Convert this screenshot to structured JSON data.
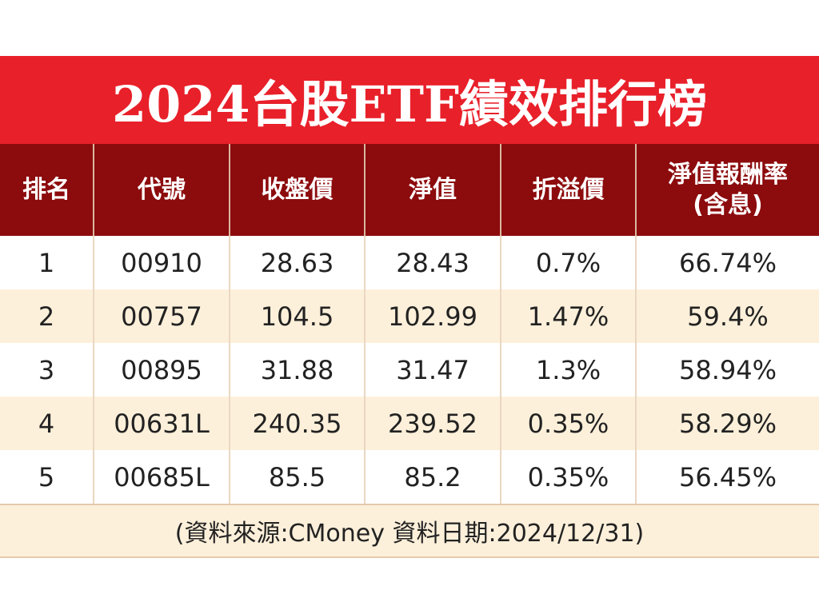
{
  "title": "2024台股ETF績效排行榜",
  "table": {
    "headers": [
      "排名",
      "代號",
      "收盤價",
      "淨值",
      "折溢價",
      "淨值報酬率\n(含息)"
    ],
    "rows": [
      [
        "1",
        "00910",
        "28.63",
        "28.43",
        "0.7%",
        "66.74%"
      ],
      [
        "2",
        "00757",
        "104.5",
        "102.99",
        "1.47%",
        "59.4%"
      ],
      [
        "3",
        "00895",
        "31.88",
        "31.47",
        "1.3%",
        "58.94%"
      ],
      [
        "4",
        "00631L",
        "240.35",
        "239.52",
        "0.35%",
        "58.29%"
      ],
      [
        "5",
        "00685L",
        "85.5",
        "85.2",
        "0.35%",
        "56.45%"
      ]
    ]
  },
  "footer": "(資料來源:CMoney 資料日期:2024/12/31)"
}
